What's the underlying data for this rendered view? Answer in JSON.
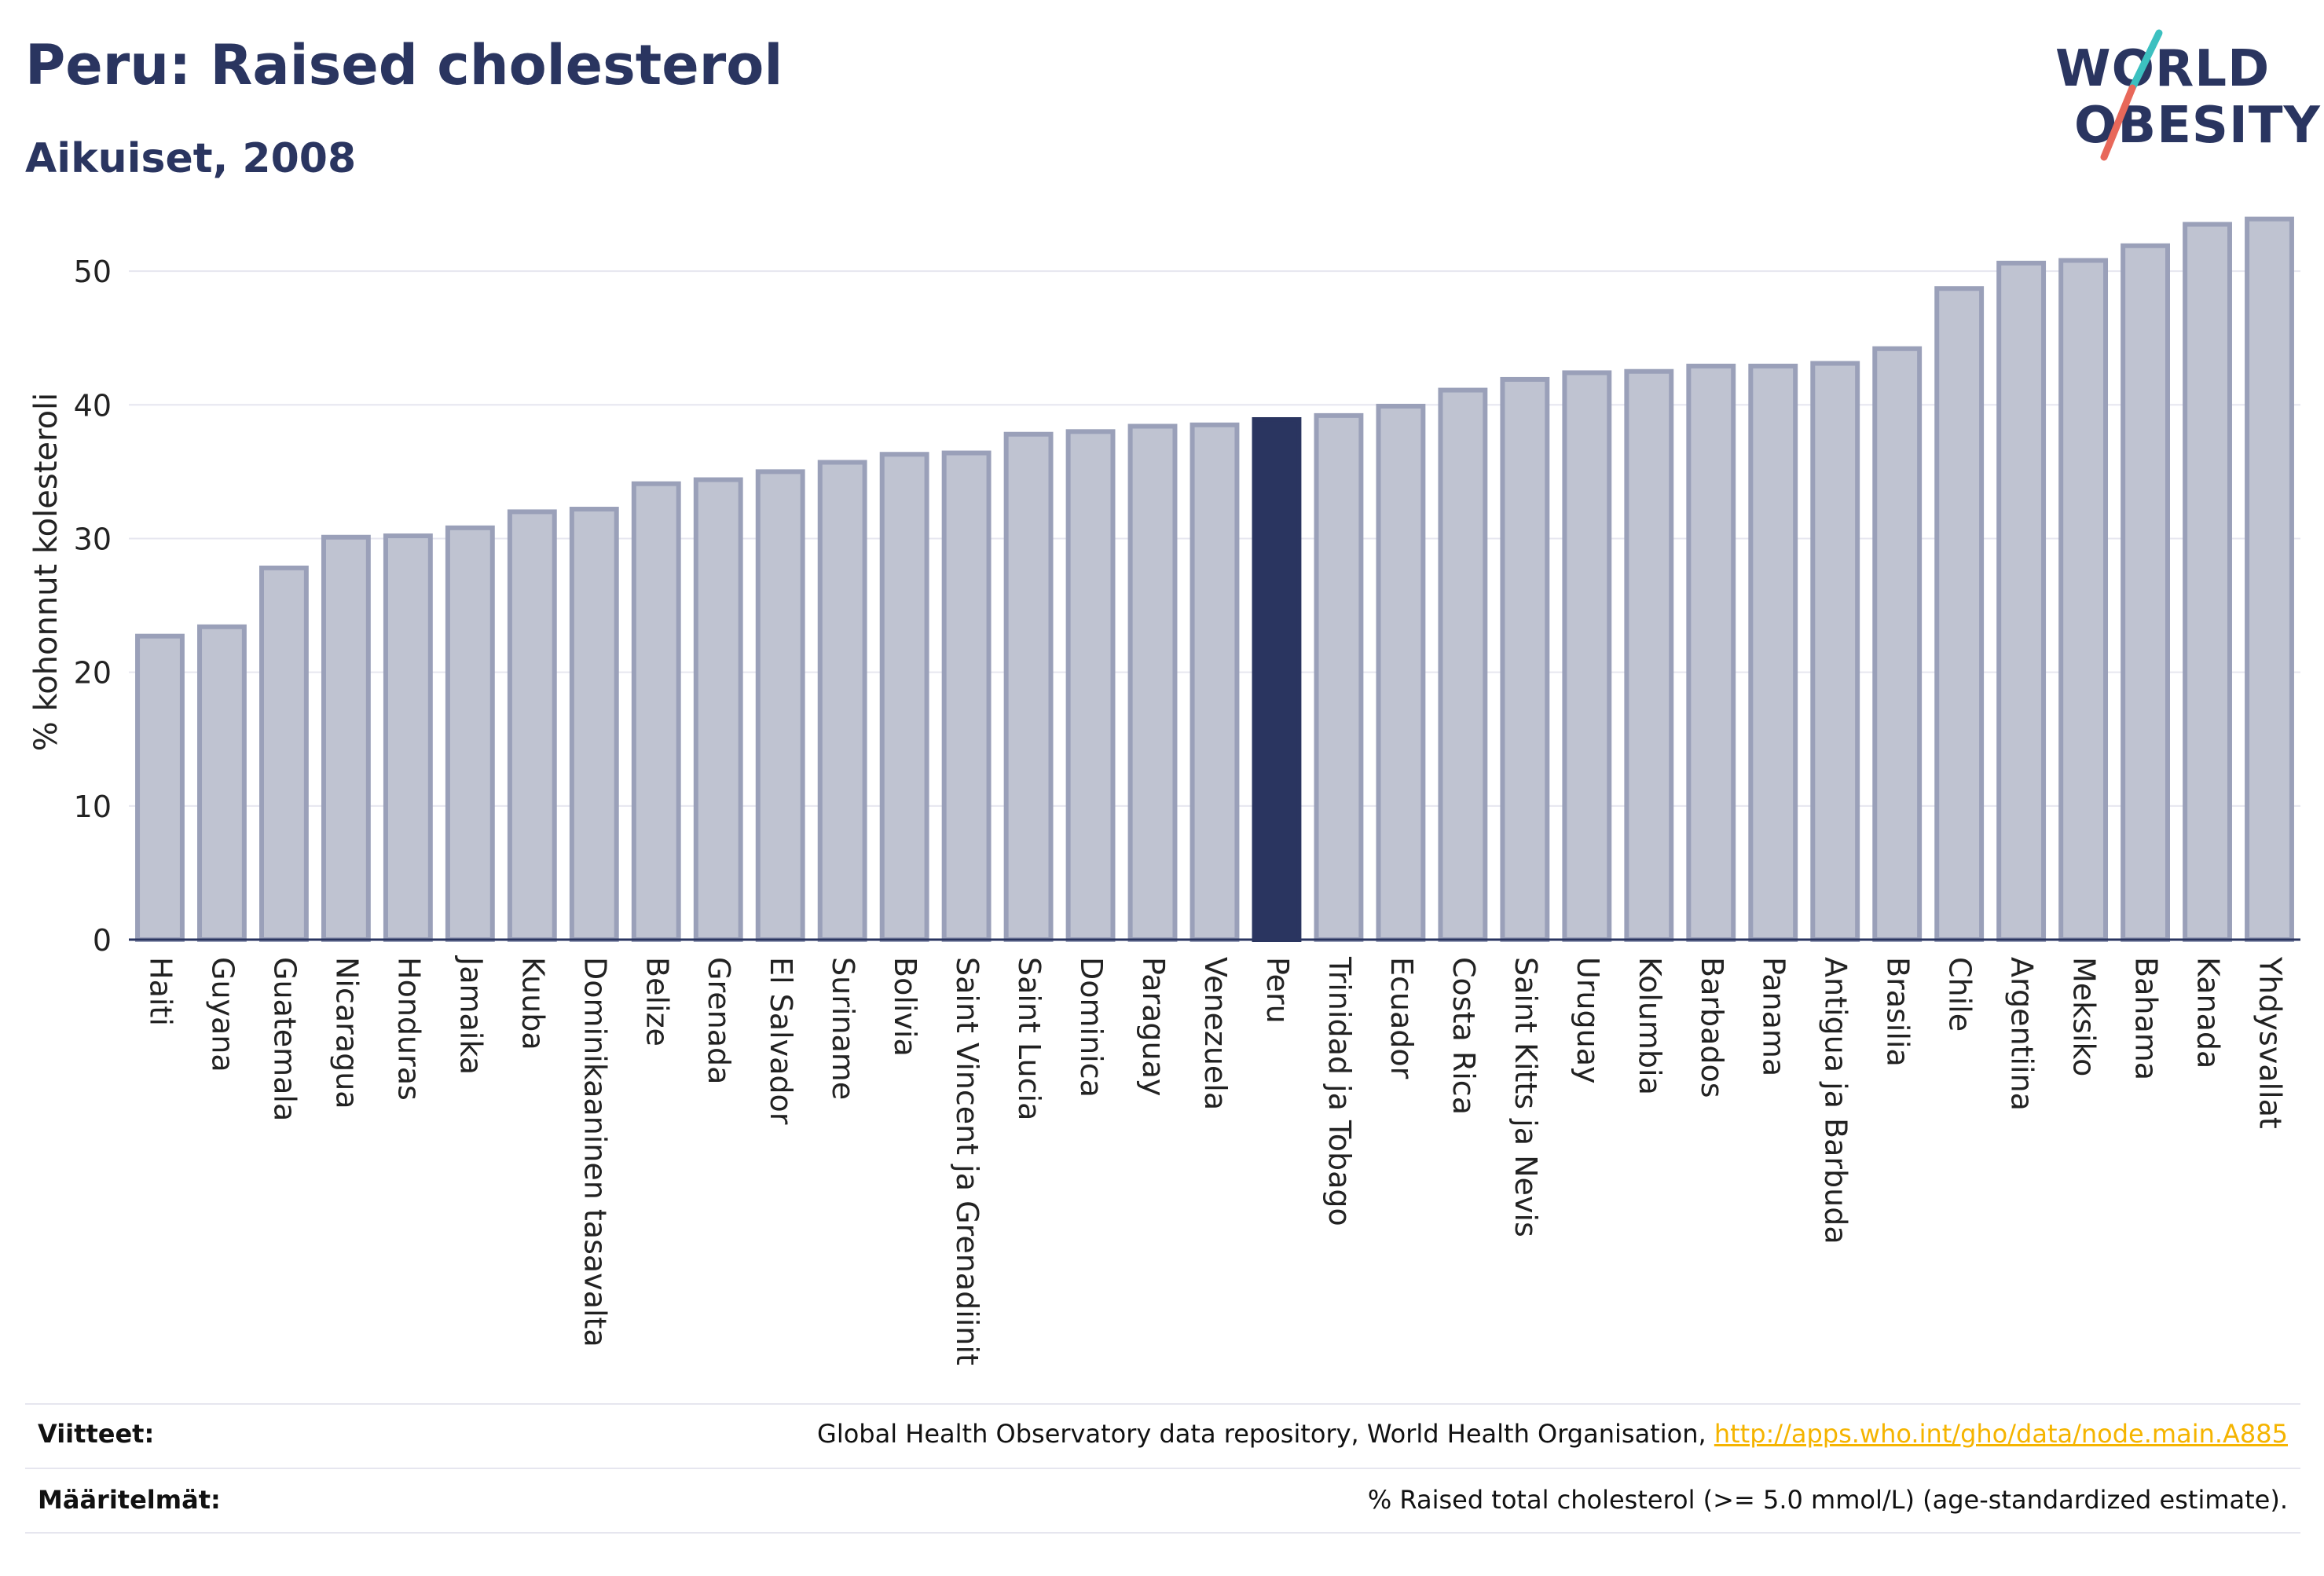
{
  "header": {
    "title": "Peru: Raised cholesterol",
    "subtitle": "Aikuiset, 2008"
  },
  "logo": {
    "line1": "WORLD",
    "line2": "OBESITY",
    "accent_colors": [
      "#3cc0c0",
      "#e8685a"
    ]
  },
  "footer": {
    "sources_label": "Viitteet:",
    "sources_text": "Global Health Observatory data repository, World Health Organisation, ",
    "sources_link": "http://apps.who.int/gho/data/node.main.A885",
    "definitions_label": "Määritelmät:",
    "definitions_text": "% Raised total cholesterol (>= 5.0 mmol/L) (age-standardized estimate)."
  },
  "colors": {
    "bar_default": "#bfc3d1",
    "bar_default_stroke": "#9aa0b9",
    "bar_highlight": "#2a3560",
    "text": "#2a3560",
    "grid": "#e6e6ef",
    "link": "#f5b400"
  },
  "chart_data": {
    "type": "bar",
    "title": "Peru: Raised cholesterol",
    "subtitle": "Aikuiset, 2008",
    "xlabel": "",
    "ylabel": "% kohonnut kolesteroli",
    "ylim": [
      0,
      55
    ],
    "yticks": [
      0,
      10,
      20,
      30,
      40,
      50
    ],
    "grid": true,
    "highlight": "Peru",
    "categories": [
      "Haiti",
      "Guyana",
      "Guatemala",
      "Nicaragua",
      "Honduras",
      "Jamaika",
      "Kuuba",
      "Dominikaaninen tasavalta",
      "Belize",
      "Grenada",
      "El Salvador",
      "Suriname",
      "Bolivia",
      "Saint Vincent ja Grenadiinit",
      "Saint Lucia",
      "Dominica",
      "Paraguay",
      "Venezuela",
      "Peru",
      "Trinidad ja Tobago",
      "Ecuador",
      "Costa Rica",
      "Saint Kitts ja Nevis",
      "Uruguay",
      "Kolumbia",
      "Barbados",
      "Panama",
      "Antigua ja Barbuda",
      "Brasilia",
      "Chile",
      "Argentiina",
      "Meksiko",
      "Bahama",
      "Kanada",
      "Yhdysvallat"
    ],
    "values": [
      22.7,
      23.4,
      27.8,
      30.1,
      30.2,
      30.8,
      32.0,
      32.2,
      34.1,
      34.4,
      35.0,
      35.7,
      36.3,
      36.4,
      37.8,
      38.0,
      38.4,
      38.5,
      38.9,
      39.2,
      39.9,
      41.1,
      41.9,
      42.4,
      42.5,
      42.9,
      42.9,
      43.1,
      44.2,
      48.7,
      50.6,
      50.8,
      51.9,
      53.5,
      53.9
    ]
  }
}
